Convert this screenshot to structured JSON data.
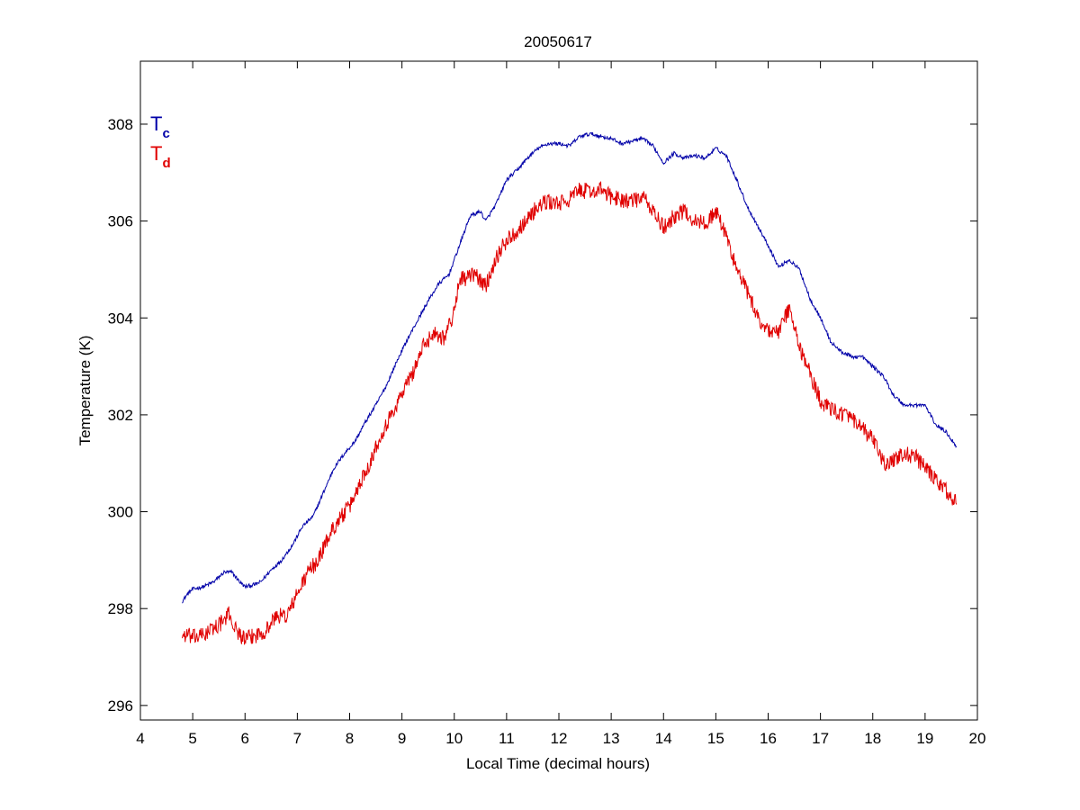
{
  "chart_data": {
    "type": "line",
    "title": "20050617",
    "xlabel": "Local Time (decimal hours)",
    "ylabel": "Temperature (K)",
    "xlim": [
      4,
      20
    ],
    "ylim": [
      295.7,
      309.3
    ],
    "xticks": [
      4,
      5,
      6,
      7,
      8,
      9,
      10,
      11,
      12,
      13,
      14,
      15,
      16,
      17,
      18,
      19,
      20
    ],
    "yticks": [
      296,
      298,
      300,
      302,
      304,
      306,
      308
    ],
    "grid": false,
    "legend_placement": "top-left",
    "series": [
      {
        "name": "Tc",
        "label_main": "T",
        "label_sub": "c",
        "color": "#0000a8",
        "noise": 0.04,
        "x": [
          4.8,
          4.9,
          5.0,
          5.2,
          5.4,
          5.6,
          5.75,
          5.9,
          6.0,
          6.2,
          6.3,
          6.5,
          6.7,
          6.9,
          7.1,
          7.3,
          7.5,
          7.7,
          7.9,
          8.1,
          8.3,
          8.5,
          8.7,
          8.9,
          9.1,
          9.3,
          9.5,
          9.7,
          9.9,
          10.1,
          10.3,
          10.5,
          10.6,
          10.8,
          11.0,
          11.2,
          11.4,
          11.6,
          11.8,
          12.0,
          12.2,
          12.4,
          12.6,
          12.8,
          13.0,
          13.2,
          13.4,
          13.6,
          13.8,
          14.0,
          14.2,
          14.4,
          14.6,
          14.8,
          15.0,
          15.2,
          15.4,
          15.6,
          15.8,
          16.0,
          16.2,
          16.4,
          16.6,
          16.8,
          17.0,
          17.2,
          17.4,
          17.6,
          17.8,
          18.0,
          18.2,
          18.4,
          18.6,
          18.8,
          19.0,
          19.2,
          19.4,
          19.6
        ],
        "y": [
          298.15,
          298.3,
          298.4,
          298.45,
          298.55,
          298.75,
          298.75,
          298.55,
          298.45,
          298.5,
          298.55,
          298.8,
          299.0,
          299.3,
          299.7,
          299.9,
          300.4,
          300.9,
          301.2,
          301.45,
          301.85,
          302.2,
          302.6,
          303.1,
          303.55,
          303.95,
          304.35,
          304.7,
          304.9,
          305.5,
          306.1,
          306.2,
          306.0,
          306.35,
          306.85,
          307.05,
          307.3,
          307.5,
          307.6,
          307.6,
          307.55,
          307.75,
          307.8,
          307.75,
          307.7,
          307.6,
          307.65,
          307.7,
          307.55,
          307.2,
          307.4,
          307.3,
          307.35,
          307.3,
          307.5,
          307.35,
          306.85,
          306.3,
          305.9,
          305.5,
          305.05,
          305.2,
          305.0,
          304.4,
          304.0,
          303.5,
          303.3,
          303.2,
          303.2,
          303.0,
          302.8,
          302.4,
          302.2,
          302.2,
          302.2,
          301.8,
          301.65,
          301.35
        ]
      },
      {
        "name": "Td",
        "label_main": "T",
        "label_sub": "d",
        "color": "#e00000",
        "noise": 0.17,
        "x": [
          4.8,
          4.9,
          5.0,
          5.2,
          5.4,
          5.6,
          5.7,
          5.8,
          6.0,
          6.2,
          6.4,
          6.6,
          6.8,
          7.0,
          7.2,
          7.4,
          7.6,
          7.8,
          8.0,
          8.2,
          8.4,
          8.6,
          8.8,
          9.0,
          9.2,
          9.4,
          9.6,
          9.8,
          10.0,
          10.1,
          10.2,
          10.4,
          10.6,
          10.8,
          11.0,
          11.2,
          11.4,
          11.6,
          11.8,
          12.0,
          12.2,
          12.4,
          12.6,
          12.8,
          13.0,
          13.2,
          13.4,
          13.6,
          13.8,
          14.0,
          14.2,
          14.4,
          14.6,
          14.8,
          15.0,
          15.2,
          15.4,
          15.6,
          15.8,
          16.0,
          16.2,
          16.4,
          16.6,
          16.8,
          17.0,
          17.2,
          17.4,
          17.6,
          17.8,
          18.0,
          18.2,
          18.4,
          18.6,
          18.8,
          19.0,
          19.2,
          19.4,
          19.6
        ],
        "y": [
          297.45,
          297.45,
          297.4,
          297.45,
          297.6,
          297.75,
          297.9,
          297.6,
          297.35,
          297.45,
          297.55,
          297.85,
          297.85,
          298.3,
          298.75,
          299.0,
          299.5,
          299.85,
          300.1,
          300.6,
          301.05,
          301.6,
          302.0,
          302.45,
          302.85,
          303.4,
          303.7,
          303.6,
          304.1,
          304.85,
          304.8,
          304.9,
          304.65,
          305.25,
          305.6,
          305.8,
          306.05,
          306.3,
          306.4,
          306.35,
          306.45,
          306.65,
          306.6,
          306.65,
          306.5,
          306.45,
          306.4,
          306.5,
          306.2,
          305.85,
          306.1,
          306.2,
          306.0,
          305.95,
          306.2,
          305.7,
          305.0,
          304.55,
          304.0,
          303.75,
          303.7,
          304.2,
          303.4,
          302.85,
          302.3,
          302.1,
          302.05,
          301.9,
          301.7,
          301.5,
          301.0,
          301.05,
          301.2,
          301.15,
          300.9,
          300.65,
          300.45,
          300.15
        ]
      }
    ]
  }
}
